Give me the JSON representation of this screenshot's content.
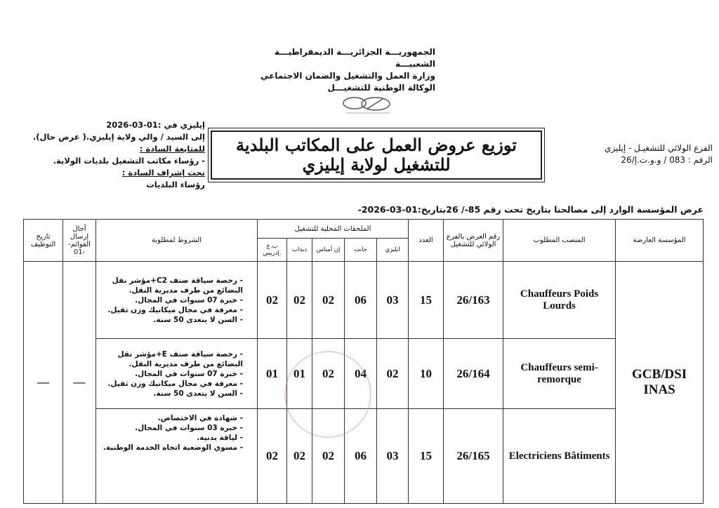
{
  "header": {
    "lines": [
      "الجمهوريـــة الجزائريـــة الديمقراطيـــة الشعبيـــة",
      "وزارة العمل والتشغيل والضمان الاجتماعي",
      "الوكالة الوطنية للتشغيـــل"
    ]
  },
  "left_block": {
    "date_line": "إيليزي في :01-03-2026",
    "to_line": "إلى السيد / والي ولاية إيليزي.( عرض حال).",
    "follow_label": "للمتابعة السادة :",
    "follow_item": "- رؤساء مكاتب التشغيل بلديات الولاية.",
    "supervision_label": "تحت إشراف السادة :",
    "supervision_item": "رؤساء البلديات"
  },
  "title": "توزيع عروض العمل على المكاتب البلدية للتشغيل لولاية إيليزي",
  "right_block": {
    "branch": "الفرع الولائي للتشغيـل - إيليزي",
    "ref": "الرقم :   083 / و.و.ت.إ/26"
  },
  "intro": "عرض المؤسسة الوارد إلى مصالحنا بتاريخ تحت رقم 85-/ 26بتاريخ:01-03-2026-",
  "table": {
    "headers": {
      "org": "المؤسسة العارضة",
      "post": "المنصب المطلوب",
      "offer_no": "رقم العرض بالفرع الولائي للتشغيل",
      "count": "العدد",
      "annexes": "الملحقات المحلية للتشغيل",
      "annex_cols": [
        "ايليزي",
        "جانت",
        "إن أمناس",
        "دبداب",
        "ب.ع .إدريس"
      ],
      "conditions": "الشروط لمطلوبة",
      "deadline": "أجال إرسال القوائم- -01",
      "hire_date": "تاريخ التوظيف"
    },
    "org": "GCB/DSI INAS",
    "deadline": "—",
    "hire_date": "—",
    "rows": [
      {
        "post": "Chauffeurs Poids Lourds",
        "offer_no": "26/163",
        "count": "15",
        "annex": [
          "03",
          "06",
          "02",
          "02",
          "02"
        ],
        "conditions": [
          "رخصة سياقة صنف C2+مؤشر نقل البضائع من طرف مديرية النقل.",
          "خبرة 07 سنوات في المجال.",
          "معرفة في مجال ميكانيك وزن ثقيل.",
          "السن لا يتعدى 50 سنة."
        ]
      },
      {
        "post": "Chauffeurs semi-remorque",
        "offer_no": "26/164",
        "count": "10",
        "annex": [
          "02",
          "04",
          "02",
          "01",
          "01"
        ],
        "conditions": [
          "رخصة سياقة صنف E+مؤشر نقل البضائع من طرف مديرية النقل.",
          "خبرة 07 سنوات في المجال.",
          "معرفة في مجال ميكانيك وزن ثقيل.",
          "السن لا يتعدى 50 سنة."
        ]
      },
      {
        "post": "Electriciens Bâtiments",
        "offer_no": "26/165",
        "count": "15",
        "annex": [
          "03",
          "06",
          "02",
          "02",
          "02"
        ],
        "conditions": [
          "شهادة في الاختصاص.",
          "خبرة 03 سنوات في المجال.",
          "لياقة بدنية.",
          "مسوي الوضعية اتجاه الخدمة الوطنية."
        ]
      }
    ]
  }
}
